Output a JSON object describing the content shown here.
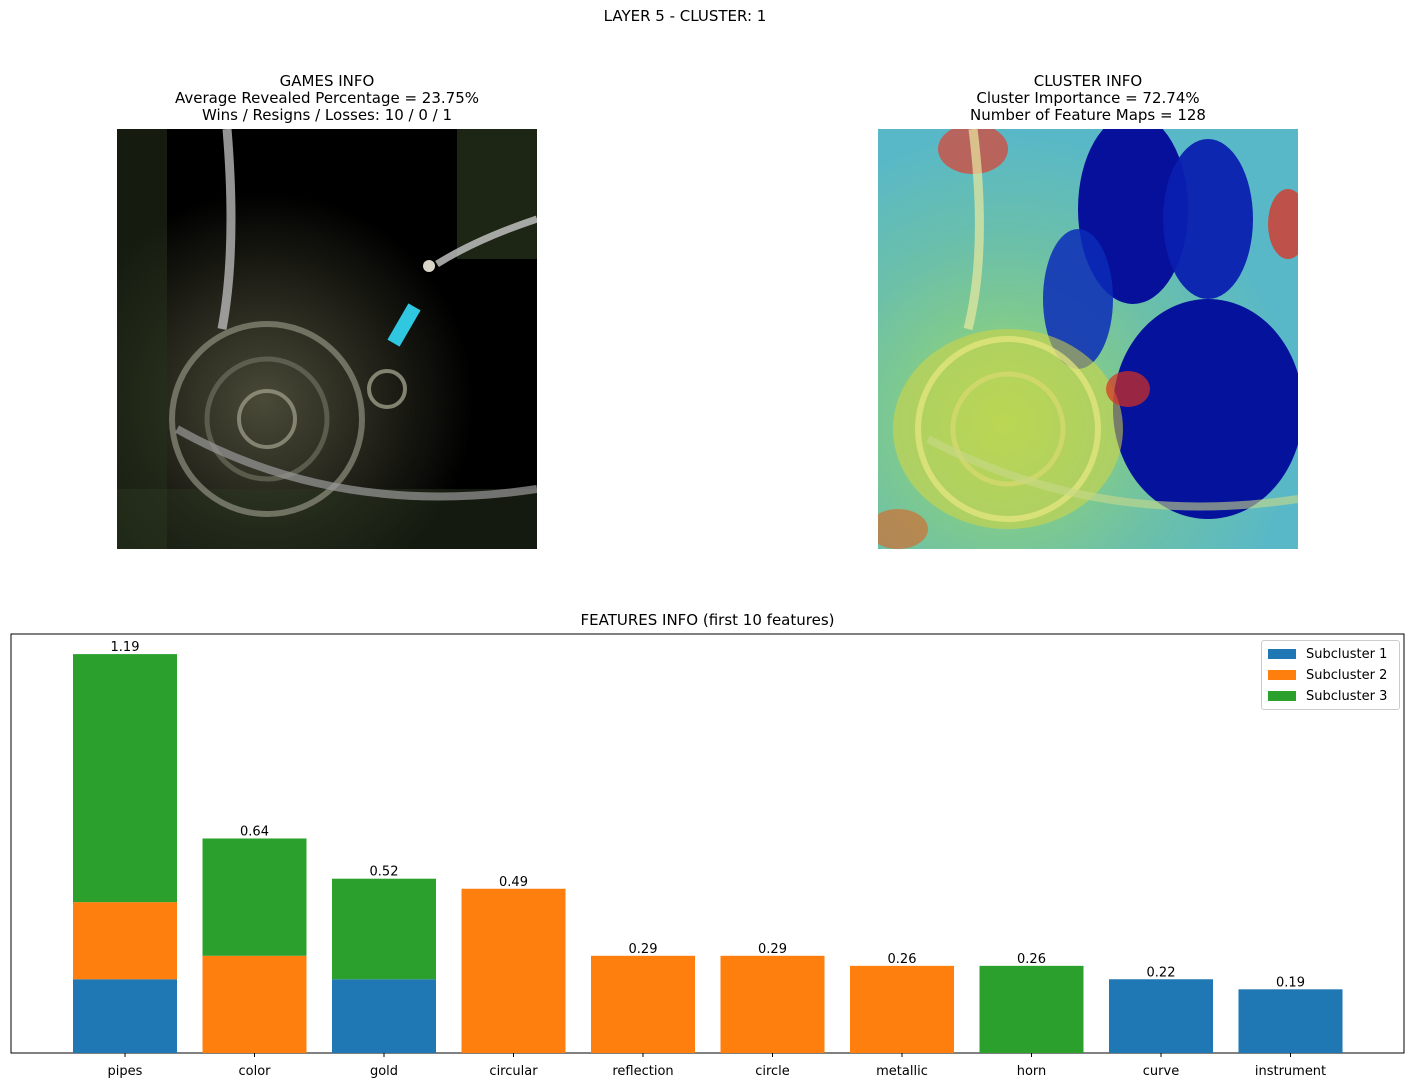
{
  "suptitle": "LAYER 5 - CLUSTER: 1",
  "games_info": {
    "title": "GAMES INFO",
    "line1": "Average Revealed Percentage = 23.75%",
    "line2": "Wins / Resigns / Losses: 10 / 0 / 1"
  },
  "cluster_info": {
    "title": "CLUSTER INFO",
    "line1": "Cluster Importance = 72.74%",
    "line2": "Number of Feature Maps = 128"
  },
  "colors": {
    "subcluster_1": "#1f77b4",
    "subcluster_2": "#ff7f0e",
    "subcluster_3": "#2ca02c"
  },
  "chart_data": {
    "type": "bar",
    "stacked": true,
    "title": "FEATURES INFO (first 10 features)",
    "categories": [
      "pipes",
      "color",
      "gold",
      "circular",
      "reflection",
      "circle",
      "metallic",
      "horn",
      "curve",
      "instrument"
    ],
    "series": [
      {
        "name": "Subcluster 1",
        "color": "#1f77b4",
        "values": [
          0.22,
          0,
          0.22,
          0,
          0,
          0,
          0,
          0,
          0.22,
          0.19
        ]
      },
      {
        "name": "Subcluster 2",
        "color": "#ff7f0e",
        "values": [
          0.23,
          0.29,
          0,
          0.49,
          0.29,
          0.29,
          0.26,
          0,
          0,
          0
        ]
      },
      {
        "name": "Subcluster 3",
        "color": "#2ca02c",
        "values": [
          0.74,
          0.35,
          0.3,
          0,
          0,
          0,
          0,
          0.26,
          0,
          0
        ]
      }
    ],
    "totals": [
      "1.19",
      "0.64",
      "0.52",
      "0.49",
      "0.29",
      "0.29",
      "0.26",
      "0.26",
      "0.22",
      "0.19"
    ],
    "ylim": [
      0,
      1.25
    ],
    "yticks_visible": false,
    "legend_position": "top-right",
    "grid": false
  }
}
